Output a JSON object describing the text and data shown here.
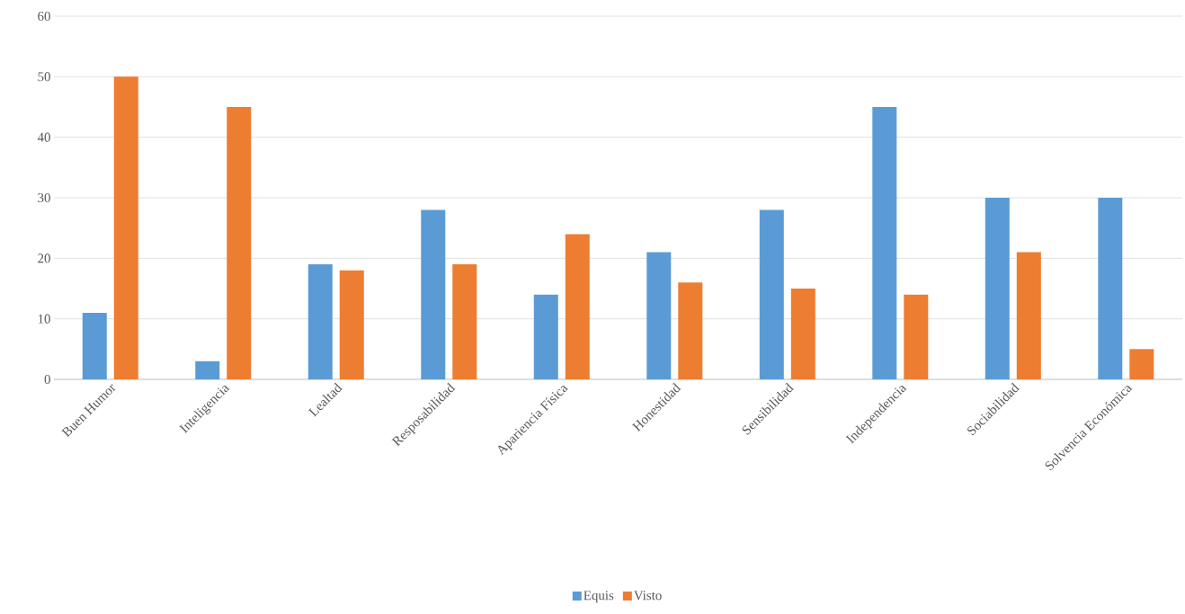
{
  "chart_data": {
    "type": "bar",
    "categories": [
      "Buen Humor",
      "Inteligencia",
      "Lealtad",
      "Resposabilidad",
      "Apariencia Física",
      "Honestidad",
      "Sensibilidad",
      "Independencia",
      "Sociabilidad",
      "Solvencia Económica"
    ],
    "series": [
      {
        "name": "Equis",
        "color": "#5b9bd5",
        "values": [
          11,
          3,
          19,
          28,
          14,
          21,
          28,
          45,
          30,
          30
        ]
      },
      {
        "name": "Visto",
        "color": "#ed7d31",
        "values": [
          50,
          45,
          18,
          19,
          24,
          16,
          15,
          14,
          21,
          5
        ]
      }
    ],
    "ylim": [
      0,
      60
    ],
    "yticks": [
      0,
      10,
      20,
      30,
      40,
      50,
      60
    ],
    "grid": "y",
    "legend": "bottom"
  }
}
